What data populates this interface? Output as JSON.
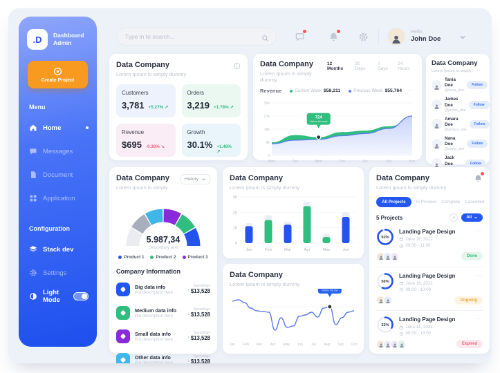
{
  "app": {
    "logo_text": ".D",
    "title": "Dashboard Admin"
  },
  "sidebar": {
    "create_project_label": "Create Project",
    "menu_label": "Menu",
    "menu_items": [
      {
        "label": "Home",
        "icon": "home-icon",
        "active": true
      },
      {
        "label": "Messages",
        "icon": "messages-icon",
        "active": false
      },
      {
        "label": "Document",
        "icon": "document-icon",
        "active": false
      },
      {
        "label": "Application",
        "icon": "application-icon",
        "active": false
      }
    ],
    "config_label": "Configuration",
    "config_items": [
      {
        "label": "Stack dev",
        "icon": "stack-icon",
        "active": true
      },
      {
        "label": "Settings",
        "icon": "settings-icon",
        "active": false
      }
    ],
    "light_mode_label": "Light Mode",
    "light_mode_on": true
  },
  "header": {
    "search_placeholder": "Type in to search...",
    "greeting": "Hello,",
    "user_name": "John Doe"
  },
  "cards": {
    "stats": {
      "title": "Data Company",
      "subtitle": "Lorem Ipsum is simply dummy",
      "tiles": [
        {
          "label": "Customers",
          "value": "3,781",
          "delta": "+5.27%",
          "direction": "up",
          "bg": "#EEF2FD"
        },
        {
          "label": "Orders",
          "value": "3,219",
          "delta": "+1.78%",
          "direction": "up",
          "bg": "#EAF8F1"
        },
        {
          "label": "Revenue",
          "value": "$695",
          "delta": "-0.38%",
          "direction": "down",
          "bg": "#FBEDF5"
        },
        {
          "label": "Growth",
          "value": "30.1%",
          "delta": "+1.48%",
          "direction": "up",
          "bg": "#EAF4FB"
        }
      ]
    },
    "revenue": {
      "title": "Data Company",
      "subtitle": "Lorem Ipsum is simply dummy",
      "tabs": [
        "12 Months",
        "30 Days",
        "7 Days",
        "24 Hours"
      ],
      "active_tab": 0,
      "series_label": "Revenue",
      "legend": [
        {
          "name": "Current Week",
          "value": "$58,211",
          "color": "#2FBE7E"
        },
        {
          "name": "Previous Week",
          "value": "$55,764",
          "color": "#5C7CEF"
        }
      ],
      "more_label": "···"
    },
    "users": {
      "title": "Data Company",
      "subtitle": "Lorem Ipsum is simply",
      "action_label": "Follow",
      "more_label": "See More +",
      "people": [
        {
          "name": "Tania Doe",
          "handle": "@tania_doe"
        },
        {
          "name": "James Doe",
          "handle": "@james_doe"
        },
        {
          "name": "Amara Doe",
          "handle": "@amara_doe"
        },
        {
          "name": "Nana Doe",
          "handle": "@nana_doe"
        },
        {
          "name": "Jack Doe",
          "handle": "@jack_doe"
        }
      ]
    },
    "gauge": {
      "title": "Data Company",
      "subtitle": "Lorem Ipsum is simply",
      "dropdown_label": "History",
      "info_title": "Company Information",
      "info_rows": [
        {
          "name": "Big data info",
          "desc": "Put description here",
          "icon_color": "#2356F0",
          "trend": "up",
          "trend_label": "Spendings",
          "amount": "$13,528"
        },
        {
          "name": "Medium data info",
          "desc": "Put description here",
          "icon_color": "#2FBE7E",
          "trend": "down",
          "trend_label": "Spendings",
          "amount": "$13,528"
        },
        {
          "name": "Small data info",
          "desc": "Put description here",
          "icon_color": "#8A2BD9",
          "trend": "up",
          "trend_label": "Spendings",
          "amount": "$13,528"
        },
        {
          "name": "Other data info",
          "desc": "Put description here",
          "icon_color": "#3EB9E9",
          "trend": "down",
          "trend_label": "Spendings",
          "amount": "$13,528"
        }
      ]
    },
    "bars": {
      "title": "Data Company",
      "subtitle": "Lorem Ipsum is simply dummy"
    },
    "line": {
      "title": "Data Company",
      "subtitle": "Lorem Ipsum is simply dummy"
    },
    "projects": {
      "title": "Data Company",
      "subtitle": "Lorem Ipsum is simply dummy",
      "tabs": [
        "All Projects",
        "In Process",
        "Complete",
        "Cancelled"
      ],
      "active_tab": 0,
      "count_label": "5 Projects",
      "filter_label": "All",
      "rows": [
        {
          "percent": 92,
          "percent_label": "92%",
          "name": "Landing Page Design",
          "date": "June 16, 2022",
          "time": "09:00 - 11:00",
          "status": "Done",
          "status_color": "#34B877",
          "status_bg": "#E4F6EC",
          "avatars": 3
        },
        {
          "percent": 56,
          "percent_label": "56%",
          "name": "Landing Page Design",
          "date": "June 16, 2022",
          "time": "09:00 - 13:00",
          "status": "Ongoing",
          "status_color": "#F2A63B",
          "status_bg": "#FDF3E2",
          "avatars": 2
        },
        {
          "percent": 32,
          "percent_label": "32%",
          "name": "Landing Page Design",
          "date": "June 16, 2022",
          "time": "09:00 - 13:00",
          "status": "Expired",
          "status_color": "#F2637E",
          "status_bg": "#FDE8EC",
          "avatars": 4
        }
      ]
    }
  },
  "chart_data": [
    {
      "id": "revenue-area",
      "type": "area",
      "x": [
        "Mon",
        "Tue",
        "Wed",
        "Thu",
        "Fri",
        "Sat",
        "Sun"
      ],
      "yticks": [
        "36k",
        "27k",
        "18k",
        "9k",
        "0"
      ],
      "ylim": [
        0,
        36000
      ],
      "legend_position": "top",
      "grid": true,
      "series": [
        {
          "name": "Current Week",
          "color": "#2FBE7E",
          "values": [
            9000,
            14000,
            12500,
            16000,
            17000,
            20000,
            24000
          ]
        },
        {
          "name": "Previous Week",
          "color": "#5C7CEF",
          "values": [
            8000,
            10500,
            11000,
            13500,
            15000,
            18500,
            27000
          ]
        }
      ],
      "tooltip": {
        "value": "724",
        "label": "Visitors this week",
        "x_index": 2
      }
    },
    {
      "id": "monthly-bars",
      "type": "bar",
      "categories": [
        "Jan",
        "Feb",
        "Mar",
        "Apr",
        "May",
        "Jun"
      ],
      "values": [
        11,
        15,
        12,
        24,
        4,
        17
      ],
      "track_values": [
        13,
        18,
        14,
        27,
        6,
        20
      ],
      "bar_colors": [
        "#2453EE",
        "#2FBE7E",
        "#2453EE",
        "#2FBE7E",
        "#2FBE7E",
        "#2453EE"
      ],
      "yticks": [
        30,
        20,
        10,
        0
      ],
      "ylim": [
        0,
        30
      ],
      "grid": true
    },
    {
      "id": "visitors-line",
      "type": "line",
      "x_labels": [
        "Jan",
        "Feb",
        "Mar",
        "Apr",
        "May",
        "Jun",
        "Jul",
        "Aug",
        "Sep",
        "Oct"
      ],
      "values": [
        27,
        28,
        26,
        22,
        20,
        19.5,
        19,
        6,
        15,
        8,
        9,
        16,
        17,
        19,
        15.5,
        22,
        23,
        10,
        15,
        19,
        20
      ],
      "ylim": [
        0,
        30
      ],
      "color": "#5C7CEF",
      "grid": false,
      "tooltip": {
        "value": "724",
        "label": "Visitors this day",
        "point_index": 16
      }
    },
    {
      "id": "product-gauge",
      "type": "pie",
      "style": "half-donut",
      "center_value": "5.987,34",
      "center_label": "Secondary text",
      "segments": [
        {
          "name": "seg-light-gray",
          "color": "#EAECF1",
          "value": 1
        },
        {
          "name": "seg-gray",
          "color": "#A9AEBC",
          "value": 1
        },
        {
          "name": "seg-sky",
          "color": "#3FB7E6",
          "value": 1
        },
        {
          "name": "seg-purple",
          "color": "#8A2BD9",
          "value": 1
        },
        {
          "name": "seg-green",
          "color": "#2FBE7E",
          "value": 1
        },
        {
          "name": "seg-blue",
          "color": "#2453EE",
          "value": 1
        }
      ],
      "legend": [
        {
          "label": "Product 1",
          "color": "#2453EE"
        },
        {
          "label": "Product 2",
          "color": "#2FBE7E"
        },
        {
          "label": "Product 3",
          "color": "#8A2BD9"
        }
      ]
    }
  ]
}
